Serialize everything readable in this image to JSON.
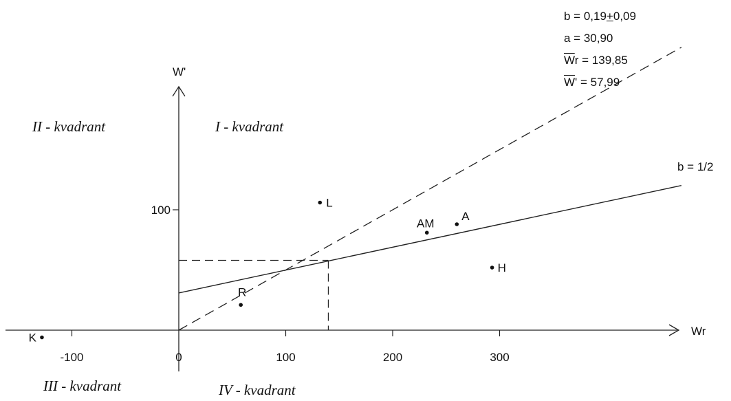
{
  "chart_data": {
    "type": "scatter",
    "xlabel": "Wr",
    "ylabel": "W'",
    "xlim": [
      -130,
      470
    ],
    "ylim": [
      -30,
      150
    ],
    "x_ticks": [
      {
        "value": -100,
        "label": "-100"
      },
      {
        "value": 0,
        "label": "0"
      },
      {
        "value": 100,
        "label": "100"
      },
      {
        "value": 200,
        "label": "200"
      },
      {
        "value": 300,
        "label": "300"
      }
    ],
    "y_ticks": [
      {
        "value": 100,
        "label": "100"
      }
    ],
    "points": [
      {
        "label": "L",
        "x": 132,
        "y": 106
      },
      {
        "label": "AM",
        "x": 232,
        "y": 81
      },
      {
        "label": "A",
        "x": 260,
        "y": 88
      },
      {
        "label": "H",
        "x": 293,
        "y": 52
      },
      {
        "label": "R",
        "x": 58,
        "y": 21
      },
      {
        "label": "K",
        "x": -128,
        "y": -6
      }
    ],
    "regression_line": {
      "intercept": 30.9,
      "slope": 0.19,
      "x_range": [
        0,
        470
      ]
    },
    "reference_line": {
      "label": "b = 1/2",
      "intercept": 0,
      "slope": 0.5,
      "x_range": [
        0,
        470
      ]
    },
    "mean_point": {
      "x": 139.85,
      "y": 57.99
    },
    "quadrants": [
      {
        "label": "I - kvadrant"
      },
      {
        "label": "II - kvadrant"
      },
      {
        "label": "III - kvadrant"
      },
      {
        "label": "IV - kvadrant"
      }
    ]
  },
  "stats": {
    "b": "b = 0,19+0,09",
    "b_prefix": "b = 0,19",
    "b_pm": "+",
    "b_suffix": "0,09",
    "a": "a = 30,90",
    "wr_mean_symbol": "W",
    "wr_mean_rest": "r = 139,85",
    "w_mean_symbol": "W",
    "w_mean_rest": "' = 57,99"
  }
}
